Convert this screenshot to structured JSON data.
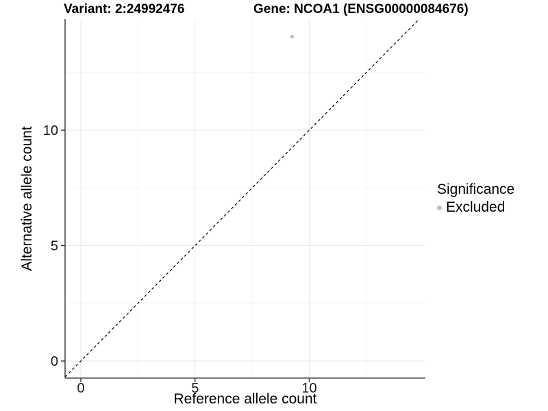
{
  "chart_data": {
    "type": "scatter",
    "titles": {
      "left": "Variant: 2:24992476",
      "right": "Gene: NCOA1 (ENSG00000084676)"
    },
    "xlabel": "Reference allele count",
    "ylabel": "Alternative allele count",
    "x_ticks": [
      0,
      5,
      10
    ],
    "y_ticks": [
      0,
      5,
      10
    ],
    "x_minor_ticks": [
      2.5,
      7.5,
      12.5
    ],
    "y_minor_ticks": [
      2.5,
      7.5,
      12.5
    ],
    "xlim": [
      -0.69,
      15.08
    ],
    "ylim": [
      -0.74,
      14.81
    ],
    "grid": "major-and-minor",
    "points": [
      {
        "x": 9.25,
        "y": 14.05,
        "series": "Excluded"
      }
    ],
    "reference_line": {
      "type": "identity",
      "slope": 1,
      "intercept": 0,
      "style": "dashed"
    },
    "legend": {
      "title": "Significance",
      "position": "right",
      "items": [
        {
          "label": "Excluded",
          "marker": "circle",
          "color": "#bebebe"
        }
      ]
    },
    "colors": {
      "point": "#bebebe",
      "grid_major": "#e7e7e7",
      "grid_minor": "#f3f3f3",
      "axis": "#333333",
      "reference_line": "#000000",
      "tick_label": "#1a1a1a"
    }
  }
}
